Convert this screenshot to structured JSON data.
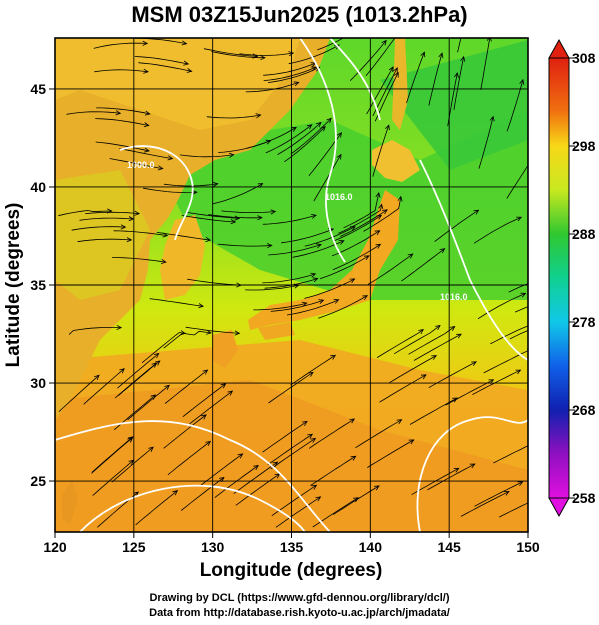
{
  "title": "MSM 03Z15Jun2025 (1013.2hPa)",
  "credits": {
    "line1": "Drawing by DCL (https://www.gfd-dennou.org/library/dcl/)",
    "line2": "Data from http://database.rish.kyoto-u.ac.jp/arch/jmadata/"
  },
  "map": {
    "xlabel": "Longitude (degrees)",
    "ylabel": "Latitude  (degrees)",
    "lon_range": [
      120,
      150
    ],
    "lat_range": [
      22.4,
      47.6
    ],
    "lon_ticks": [
      "120",
      "125",
      "130",
      "135",
      "140",
      "145",
      "150"
    ],
    "lat_ticks": [
      "25",
      "30",
      "35",
      "40",
      "45"
    ],
    "contour_labels": [
      "1000.0",
      "1016.0",
      "1016.0"
    ]
  },
  "colorbar": {
    "ticks": [
      "308",
      "298",
      "288",
      "278",
      "268",
      "258"
    ],
    "min": 258,
    "max": 308
  }
}
